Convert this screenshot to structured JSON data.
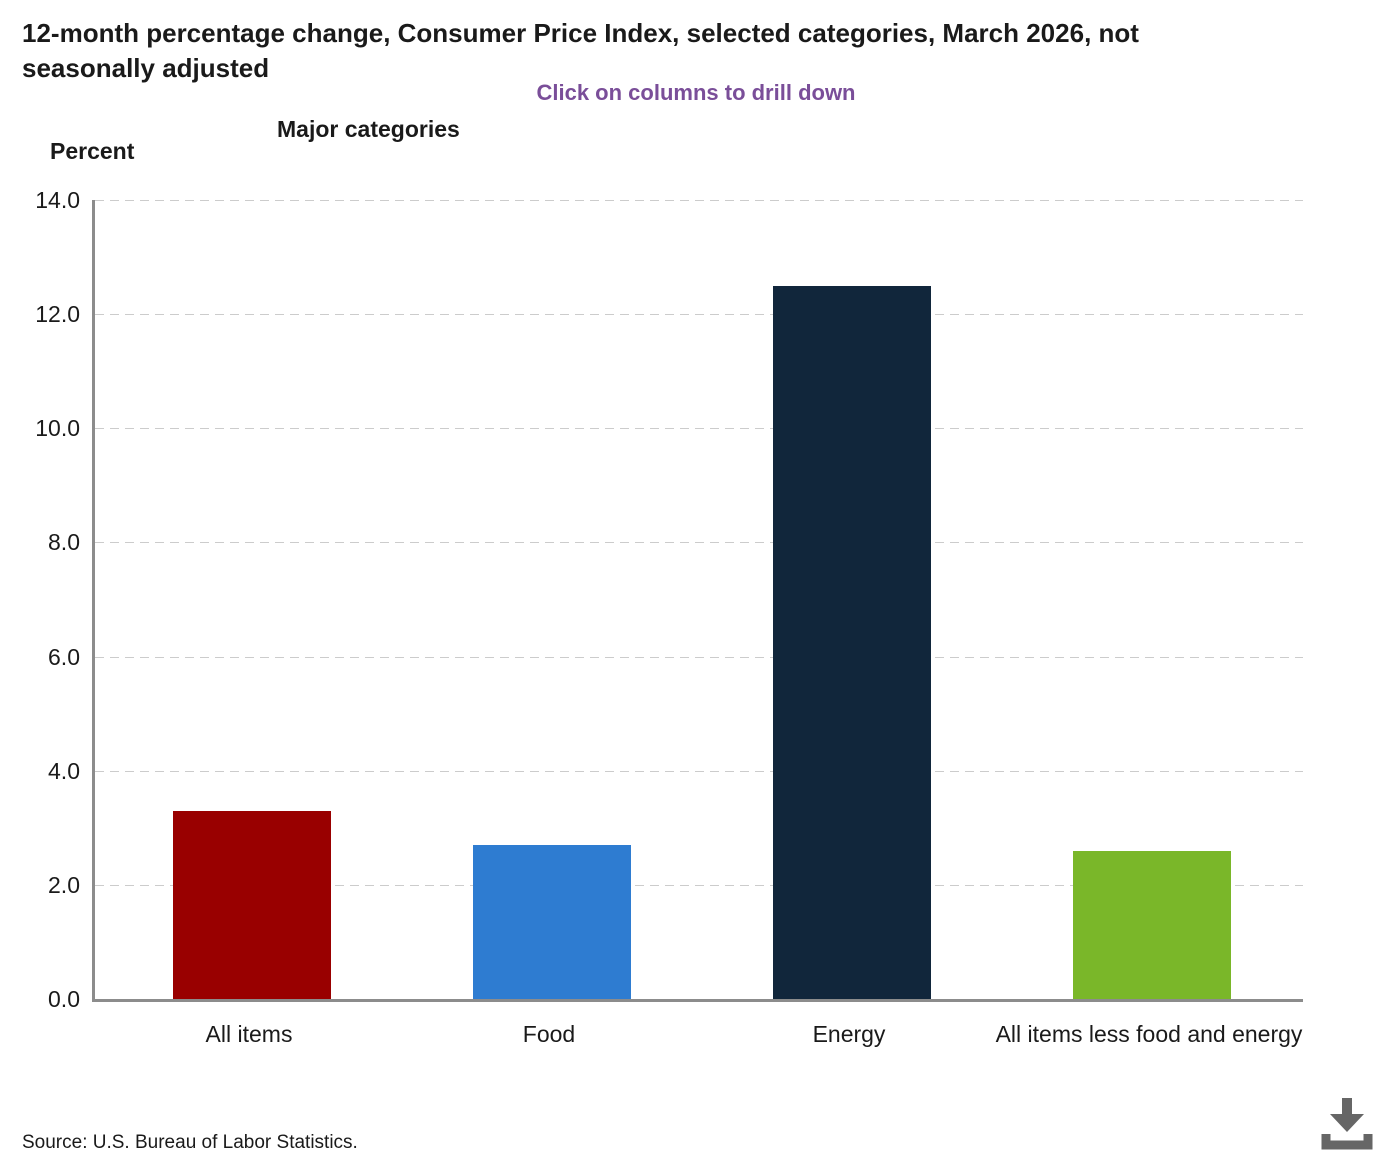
{
  "header": {
    "title": "12-month percentage change, Consumer Price Index, selected categories, March 2026, not seasonally adjusted",
    "subtitle": "Click on columns to drill down",
    "group_label": "Major categories",
    "y_axis_title": "Percent"
  },
  "chart_data": {
    "type": "bar",
    "title": "12-month percentage change, Consumer Price Index, selected categories, March 2026, not seasonally adjusted",
    "subtitle": "Click on columns to drill down",
    "xlabel": "Major categories",
    "ylabel": "Percent",
    "categories": [
      "All items",
      "Food",
      "Energy",
      "All items less food and energy"
    ],
    "values": [
      3.3,
      2.7,
      12.5,
      2.6
    ],
    "bar_colors": [
      "#990000",
      "#2e7cd1",
      "#11263b",
      "#7ab729"
    ],
    "ylim": [
      0,
      14
    ],
    "ytick_step": 2,
    "ytick_labels": [
      "0.0",
      "2.0",
      "4.0",
      "6.0",
      "8.0",
      "10.0",
      "12.0",
      "14.0"
    ],
    "grid": "horizontal dashed",
    "legend": "none"
  },
  "colors": {
    "subtitle_purple": "#7a4e99",
    "axis_gray": "#8c8c8c",
    "gridline_gray": "#cccccc",
    "icon_gray": "#666666"
  },
  "footer": {
    "source": "Source: U.S. Bureau of Labor Statistics.",
    "download_icon": "download-icon"
  }
}
